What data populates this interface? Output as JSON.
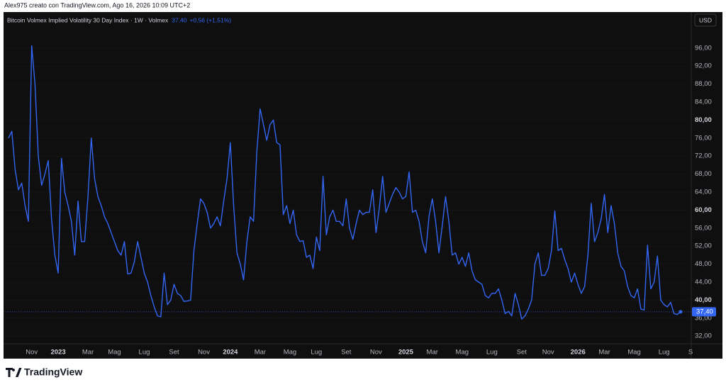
{
  "chart_data": {
    "type": "line",
    "attribution": "Alex975 creato con TradingView.com, Ago 16, 2026 10:09 UTC+2",
    "title": "Bitcoin Volmex Implied Volatility 30 Day Index · 1W · Volmex",
    "last_value": 37.4,
    "last_value_label": "37,40",
    "change_label": "+0,56 (+1,51%)",
    "currency": "USD",
    "brand": "TradingView",
    "grid": true,
    "ylim": [
      30.3,
      104
    ],
    "yticks": [
      {
        "value": 32,
        "label": "32,00"
      },
      {
        "value": 36,
        "label": "36,00"
      },
      {
        "value": 40,
        "label": "40,00"
      },
      {
        "value": 44,
        "label": "44,00"
      },
      {
        "value": 48,
        "label": "48,00"
      },
      {
        "value": 52,
        "label": "52,00"
      },
      {
        "value": 56,
        "label": "56,00"
      },
      {
        "value": 60,
        "label": "60,00"
      },
      {
        "value": 64,
        "label": "64,00"
      },
      {
        "value": 68,
        "label": "68,00"
      },
      {
        "value": 72,
        "label": "72,00"
      },
      {
        "value": 76,
        "label": "76,00"
      },
      {
        "value": 80,
        "label": "80,00"
      },
      {
        "value": 84,
        "label": "84,00"
      },
      {
        "value": 88,
        "label": "88,00"
      },
      {
        "value": 92,
        "label": "92,00"
      },
      {
        "value": 96,
        "label": "96,00"
      }
    ],
    "categories": [
      null,
      null,
      null,
      null,
      null,
      null,
      null,
      "Nov",
      null,
      null,
      null,
      null,
      null,
      null,
      null,
      "2023",
      null,
      null,
      null,
      null,
      null,
      null,
      null,
      null,
      "Mar",
      null,
      null,
      null,
      null,
      null,
      null,
      null,
      "Mag",
      null,
      null,
      null,
      null,
      null,
      null,
      null,
      null,
      "Lug",
      null,
      null,
      null,
      null,
      null,
      null,
      null,
      null,
      "Set",
      null,
      null,
      null,
      null,
      null,
      null,
      null,
      null,
      "Nov",
      null,
      null,
      null,
      null,
      null,
      null,
      null,
      "2024",
      null,
      null,
      null,
      null,
      null,
      null,
      null,
      null,
      "Mar",
      null,
      null,
      null,
      null,
      null,
      null,
      null,
      null,
      "Mag",
      null,
      null,
      null,
      null,
      null,
      null,
      null,
      "Lug",
      null,
      null,
      null,
      null,
      null,
      null,
      null,
      null,
      "Set",
      null,
      null,
      null,
      null,
      null,
      null,
      null,
      null,
      "Nov",
      null,
      null,
      null,
      null,
      null,
      null,
      null,
      null,
      "2025",
      null,
      null,
      null,
      null,
      null,
      null,
      null,
      "Mar",
      null,
      null,
      null,
      null,
      null,
      null,
      null,
      null,
      "Mag",
      null,
      null,
      null,
      null,
      null,
      null,
      null,
      null,
      "Lug",
      null,
      null,
      null,
      null,
      null,
      null,
      null,
      null,
      "Set",
      null,
      null,
      null,
      null,
      null,
      null,
      null,
      "Nov",
      null,
      null,
      null,
      null,
      null,
      null,
      null,
      null,
      "2026",
      null,
      null,
      null,
      null,
      null,
      null,
      null,
      "Mar",
      null,
      null,
      null,
      null,
      null,
      null,
      null,
      null,
      "Mag",
      null,
      null,
      null,
      null,
      null,
      null,
      null,
      null,
      "Lug",
      null,
      null,
      null,
      null,
      null,
      null,
      null,
      "S"
    ],
    "series": [
      {
        "name": "Bitcoin Volmex Implied Volatility 30 Day Index",
        "color": "#3366f2",
        "values": [
          76,
          77.5,
          69,
          64.5,
          66,
          61,
          57.5,
          96.5,
          88,
          72,
          65.5,
          68,
          71,
          58,
          50,
          46,
          71.5,
          64,
          61,
          57.5,
          50,
          62,
          53,
          53,
          63,
          76,
          67,
          63,
          61,
          58.5,
          57,
          55,
          53,
          51,
          50,
          53,
          45.8,
          46,
          48.5,
          53,
          49.5,
          46,
          44,
          41,
          38.5,
          36.5,
          36.3,
          46,
          39,
          40,
          43.5,
          41.5,
          41,
          39.7,
          39.8,
          40,
          51,
          57,
          62.5,
          61.5,
          59.5,
          56,
          57,
          58.5,
          56.5,
          62,
          67,
          75,
          61,
          50.5,
          48,
          44.5,
          53,
          58.5,
          57.5,
          73,
          82.5,
          79,
          75.5,
          79,
          80,
          75,
          74.5,
          59,
          61,
          57,
          60,
          54.5,
          53,
          53.2,
          49.5,
          50,
          47,
          54,
          51,
          67.5,
          54.5,
          58.5,
          60,
          57.5,
          57.5,
          56.5,
          62.5,
          56,
          53.5,
          57,
          60,
          59,
          59.5,
          59.5,
          64.5,
          55,
          60.5,
          67.5,
          59.5,
          61.5,
          63.5,
          65,
          64,
          62.5,
          63,
          68.5,
          59.5,
          60,
          57.5,
          53,
          50.5,
          58.5,
          62.5,
          57.5,
          50.5,
          56.5,
          63,
          57.5,
          50,
          50.5,
          48,
          49.5,
          47.5,
          50.5,
          46.5,
          44.5,
          44,
          43.5,
          41,
          40.5,
          41.5,
          41.5,
          42.5,
          40,
          37,
          37.5,
          36.5,
          41.5,
          39,
          35.8,
          36.5,
          38,
          40,
          48,
          50.5,
          45.5,
          45.5,
          47,
          51,
          59.8,
          51,
          51.5,
          49,
          47,
          44,
          46,
          43.5,
          41.5,
          43,
          50,
          61.5,
          53,
          55,
          58,
          63.5,
          55,
          61,
          57,
          50.5,
          47.5,
          46.5,
          43,
          41,
          40.5,
          42.5,
          38,
          37.8,
          52.2,
          42.5,
          44,
          49.8,
          40,
          39,
          38.5,
          39.5,
          37,
          36.8,
          37.4,
          null,
          null,
          null
        ]
      }
    ]
  }
}
